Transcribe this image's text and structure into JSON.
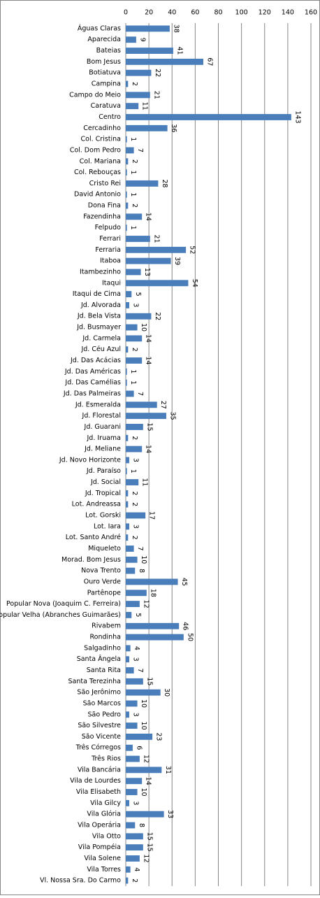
{
  "chart_data": {
    "type": "hbar",
    "categories": [
      "Águas Claras",
      "Aparecida",
      "Bateias",
      "Bom Jesus",
      "Botiatuva",
      "Campina",
      "Campo do Meio",
      "Caratuva",
      "Centro",
      "Cercadinho",
      "Col. Cristina",
      "Col. Dom Pedro",
      "Col. Mariana",
      "Col. Rebouças",
      "Cristo Rei",
      "David Antonio",
      "Dona Fina",
      "Fazendinha",
      "Felpudo",
      "Ferrari",
      "Ferraria",
      "Itaboa",
      "Itambezinho",
      "Itaqui",
      "Itaqui de Cima",
      "Jd. Alvorada",
      "Jd. Bela Vista",
      "Jd. Busmayer",
      "Jd. Carmela",
      "Jd. Céu Azul",
      "Jd. Das Acácias",
      "Jd. Das Américas",
      "Jd. Das Camélias",
      "Jd. Das Palmeiras",
      "Jd. Esmeralda",
      "Jd. Florestal",
      "Jd. Guarani",
      "Jd. Iruama",
      "Jd. Meliane",
      "Jd. Novo Horizonte",
      "Jd. Paraíso",
      "Jd. Social",
      "Jd. Tropical",
      "Lot. Andreassa",
      "Lot. Gorski",
      "Lot. Iara",
      "Lot. Santo André",
      "Miqueleto",
      "Morad. Bom Jesus",
      "Nova Trento",
      "Ouro Verde",
      "Partênope",
      "Popular Nova (Joaquim C. Ferreira)",
      "Popular Velha (Abranches Guimarães)",
      "Rivabem",
      "Rondinha",
      "Salgadinho",
      "Santa Ângela",
      "Santa Rita",
      "Santa Terezinha",
      "São Jerônimo",
      "São Marcos",
      "São Pedro",
      "São Silvestre",
      "São Vicente",
      "Três Córregos",
      "Três Rios",
      "Vila Bancária",
      "Vila de Lourdes",
      "Vila Elisabeth",
      "Vila Gilcy",
      "Vila Glória",
      "Vila Operária",
      "Vila Otto",
      "Vila Pompéia",
      "Vila Solene",
      "Vila Torres",
      "Vl. Nossa Sra. Do Carmo"
    ],
    "values": [
      38,
      9,
      41,
      67,
      22,
      2,
      21,
      11,
      143,
      36,
      1,
      7,
      2,
      1,
      28,
      1,
      2,
      14,
      1,
      21,
      52,
      39,
      13,
      54,
      5,
      3,
      22,
      10,
      14,
      2,
      14,
      1,
      1,
      7,
      27,
      35,
      15,
      2,
      14,
      3,
      1,
      11,
      2,
      2,
      17,
      3,
      2,
      7,
      10,
      8,
      45,
      18,
      12,
      5,
      46,
      50,
      4,
      3,
      7,
      15,
      30,
      10,
      3,
      10,
      23,
      6,
      12,
      31,
      14,
      10,
      3,
      33,
      8,
      15,
      15,
      12,
      4,
      2
    ],
    "color": "#4a7ebb",
    "xlim": [
      0,
      160
    ],
    "xticks": [
      0,
      20,
      40,
      60,
      80,
      100,
      120,
      140,
      160
    ],
    "grid": true
  }
}
